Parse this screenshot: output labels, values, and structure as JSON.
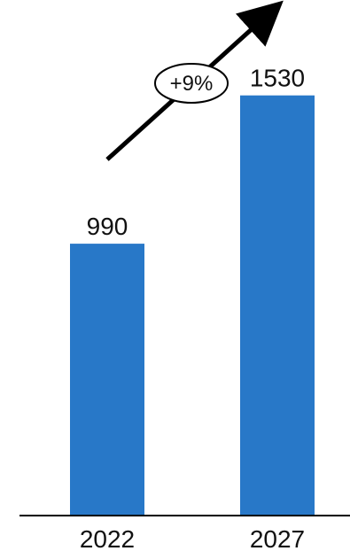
{
  "chart_data": {
    "type": "bar",
    "categories": [
      "2022",
      "2027"
    ],
    "values": [
      990,
      1530
    ],
    "data_labels": [
      "990",
      "1530"
    ],
    "title": "",
    "xlabel": "",
    "ylabel": "",
    "ylim": [
      0,
      1800
    ],
    "grid": false,
    "annotation": {
      "text": "+9%",
      "kind": "growth-arrow"
    },
    "colors": {
      "bar": "#2878c8",
      "axis": "#000000",
      "arrow": "#000000",
      "text": "#111111"
    }
  }
}
